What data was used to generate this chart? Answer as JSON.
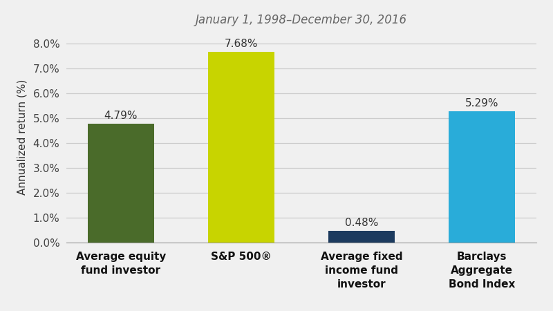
{
  "title": "January 1, 1998–December 30, 2016",
  "categories": [
    "Average equity\nfund investor",
    "S&P 500®",
    "Average fixed\nincome fund\ninvestor",
    "Barclays\nAggregate\nBond Index"
  ],
  "values": [
    4.79,
    7.68,
    0.48,
    5.29
  ],
  "bar_colors": [
    "#4a6b2a",
    "#c8d400",
    "#1c3a5e",
    "#29acd9"
  ],
  "value_labels": [
    "4.79%",
    "7.68%",
    "0.48%",
    "5.29%"
  ],
  "ylabel": "Annualized return (%)",
  "ylim": [
    0,
    8.5
  ],
  "yticks": [
    0.0,
    1.0,
    2.0,
    3.0,
    4.0,
    5.0,
    6.0,
    7.0,
    8.0
  ],
  "ytick_labels": [
    "0.0%",
    "1.0%",
    "2.0%",
    "3.0%",
    "4.0%",
    "5.0%",
    "6.0%",
    "7.0%",
    "8.0%"
  ],
  "background_color": "#f0f0f0",
  "title_fontsize": 12,
  "tick_label_fontsize": 11,
  "value_label_fontsize": 11,
  "ylabel_fontsize": 11,
  "xlabel_fontsize": 11,
  "bar_width": 0.55
}
